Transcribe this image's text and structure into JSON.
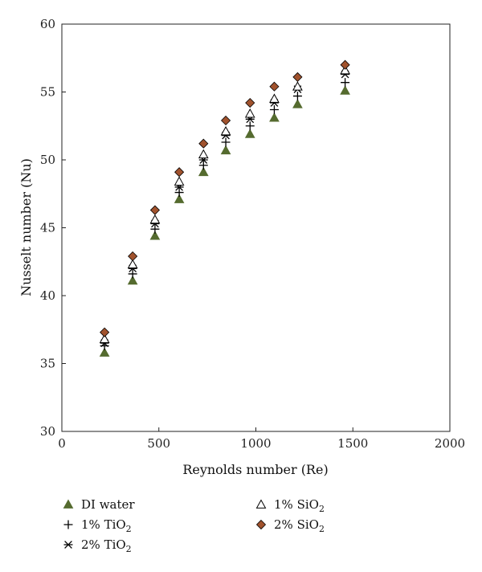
{
  "chart_data": {
    "type": "scatter",
    "xlabel": "Reynolds number (Re)",
    "ylabel": "Nusselt number (Nu)",
    "xlim": [
      0,
      2000
    ],
    "ylim": [
      30,
      60
    ],
    "xticks": [
      0,
      500,
      1000,
      1500,
      2000
    ],
    "yticks": [
      30,
      35,
      40,
      45,
      50,
      55,
      60
    ],
    "grid": false,
    "legend_position": "bottom",
    "x": [
      220,
      365,
      480,
      605,
      730,
      845,
      970,
      1095,
      1215,
      1460
    ],
    "series": [
      {
        "label_main": "DI water",
        "label_sub": "",
        "marker": "triangle-filled",
        "color": "#556b2f",
        "values": [
          35.8,
          41.1,
          44.4,
          47.1,
          49.1,
          50.7,
          51.9,
          53.1,
          54.1,
          55.1
        ]
      },
      {
        "label_main": "1% TiO",
        "label_sub": "2",
        "marker": "plus",
        "color": "#000000",
        "values": [
          36.3,
          41.6,
          44.9,
          47.6,
          49.6,
          51.3,
          52.5,
          53.7,
          54.7,
          55.7
        ]
      },
      {
        "label_main": "2% TiO",
        "label_sub": "2",
        "marker": "asterisk",
        "color": "#000000",
        "values": [
          36.5,
          42.0,
          45.3,
          48.0,
          50.0,
          51.8,
          53.0,
          54.2,
          55.2,
          56.3
        ]
      },
      {
        "label_main": "1% SiO",
        "label_sub": "2",
        "marker": "triangle-open",
        "color": "#000000",
        "values": [
          36.8,
          42.3,
          45.6,
          48.4,
          50.4,
          52.1,
          53.4,
          54.5,
          55.4,
          56.6
        ]
      },
      {
        "label_main": "2% SiO",
        "label_sub": "2",
        "marker": "diamond",
        "color": "#a0522d",
        "values": [
          37.3,
          42.9,
          46.3,
          49.1,
          51.2,
          52.9,
          54.2,
          55.4,
          56.1,
          57.0
        ]
      }
    ]
  }
}
